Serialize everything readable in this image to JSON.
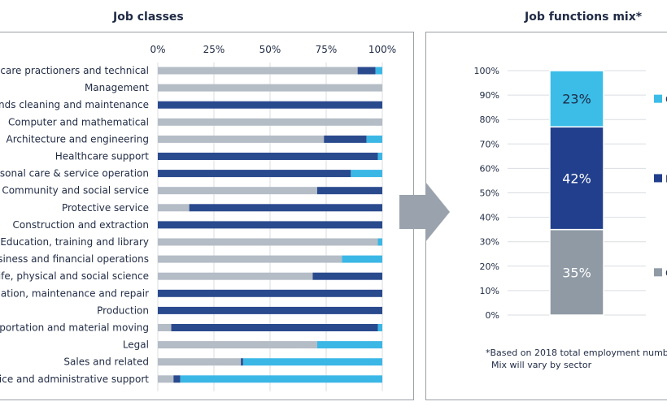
{
  "colors": {
    "gray": "#b4bcc6",
    "navy": "#2a4a8e",
    "cyan": "#3bb7e6",
    "mix_gray": "#8f9aa5",
    "mix_navy": "#213f8c",
    "mix_cyan": "#3bbde8",
    "grid": "#d9dde2",
    "text": "#1f2a44",
    "arrow": "#9aa3ad"
  },
  "panels": {
    "left_title": "Job classes",
    "right_title": "Job functions mix*"
  },
  "footnote": {
    "line1": "*Based on 2018 total employment numb",
    "line2": "Mix will vary by sector"
  },
  "chart_data": [
    {
      "type": "bar",
      "orientation": "horizontal",
      "stacked": true,
      "title": "Job classes",
      "x_tick_labels": [
        "0%",
        "25%",
        "50%",
        "75%",
        "100%"
      ],
      "xlim": [
        0,
        100
      ],
      "categories": [
        "ncare practioners and technical",
        "Management",
        "unds cleaning and maintenance",
        "Computer and mathematical",
        "Architecture and engineering",
        "Healthcare support",
        "rsonal care & service operation",
        "Community and social service",
        "Protective service",
        "Construction and extraction",
        "Education, training and library",
        "siness and financial operations",
        "Life, physical and social science",
        "llation, maintenance and repair",
        "Production",
        "sportation and material moving",
        "Legal",
        "Sales and related",
        "fice and administrative support"
      ],
      "series": [
        {
          "color_key": "gray",
          "values": [
            89,
            100,
            0,
            100,
            74,
            0,
            0,
            71,
            14,
            0,
            98,
            82,
            69,
            0,
            0,
            6,
            71,
            37,
            7
          ]
        },
        {
          "color_key": "navy",
          "values": [
            8,
            0,
            100,
            0,
            19,
            98,
            86,
            29,
            86,
            100,
            0,
            0,
            31,
            100,
            100,
            92,
            0,
            1,
            3
          ]
        },
        {
          "color_key": "cyan",
          "values": [
            3,
            0,
            0,
            0,
            7,
            2,
            14,
            0,
            0,
            0,
            2,
            18,
            0,
            0,
            0,
            2,
            29,
            62,
            90
          ]
        }
      ]
    },
    {
      "type": "bar",
      "orientation": "vertical",
      "stacked": true,
      "title": "Job functions mix*",
      "y_tick_labels": [
        "0%",
        "10%",
        "20%",
        "30%",
        "40%",
        "50%",
        "60%",
        "70%",
        "80%",
        "90%",
        "100%"
      ],
      "ylim": [
        0,
        100
      ],
      "segments": [
        {
          "color_key": "mix_gray",
          "value": 35,
          "label": "35%",
          "legend_initial": "C"
        },
        {
          "color_key": "mix_navy",
          "value": 42,
          "label": "42%",
          "legend_initial": "I"
        },
        {
          "color_key": "mix_cyan",
          "value": 23,
          "label": "23%",
          "legend_initial": "C"
        }
      ]
    }
  ]
}
